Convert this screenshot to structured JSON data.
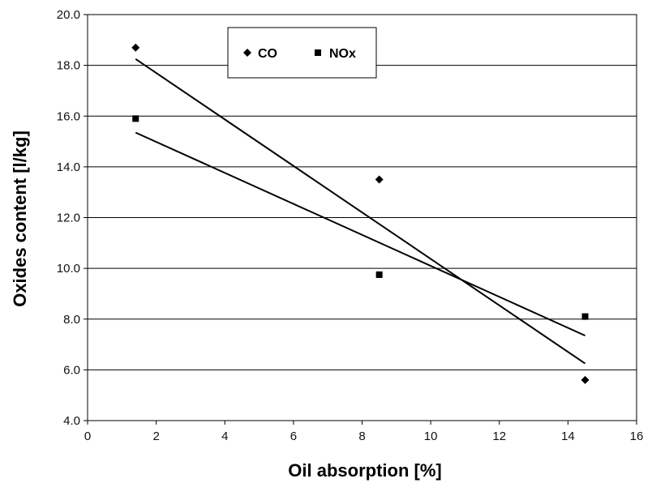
{
  "chart_data": {
    "type": "scatter",
    "xlabel": "Oil absorption [%]",
    "ylabel": "Oxides content [l/kg]",
    "xlim": [
      0,
      16
    ],
    "ylim": [
      4,
      20
    ],
    "xticks": [
      "0",
      "2",
      "4",
      "6",
      "8",
      "10",
      "12",
      "14",
      "16"
    ],
    "yticks": [
      "4.0",
      "6.0",
      "8.0",
      "10.0",
      "12.0",
      "14.0",
      "16.0",
      "18.0",
      "20.0"
    ],
    "grid": "horizontal",
    "legend_position": "top-left",
    "series": [
      {
        "name": "CO",
        "marker": "diamond",
        "color": "#000000",
        "points": [
          [
            1.4,
            18.7
          ],
          [
            8.5,
            13.5
          ],
          [
            14.5,
            5.6
          ]
        ],
        "trendline": [
          [
            1.4,
            18.25
          ],
          [
            14.5,
            6.25
          ]
        ]
      },
      {
        "name": "NOx",
        "marker": "square",
        "color": "#000000",
        "points": [
          [
            1.4,
            15.9
          ],
          [
            8.5,
            9.75
          ],
          [
            14.5,
            8.1
          ]
        ],
        "trendline": [
          [
            1.4,
            15.35
          ],
          [
            14.5,
            7.35
          ]
        ]
      }
    ]
  }
}
